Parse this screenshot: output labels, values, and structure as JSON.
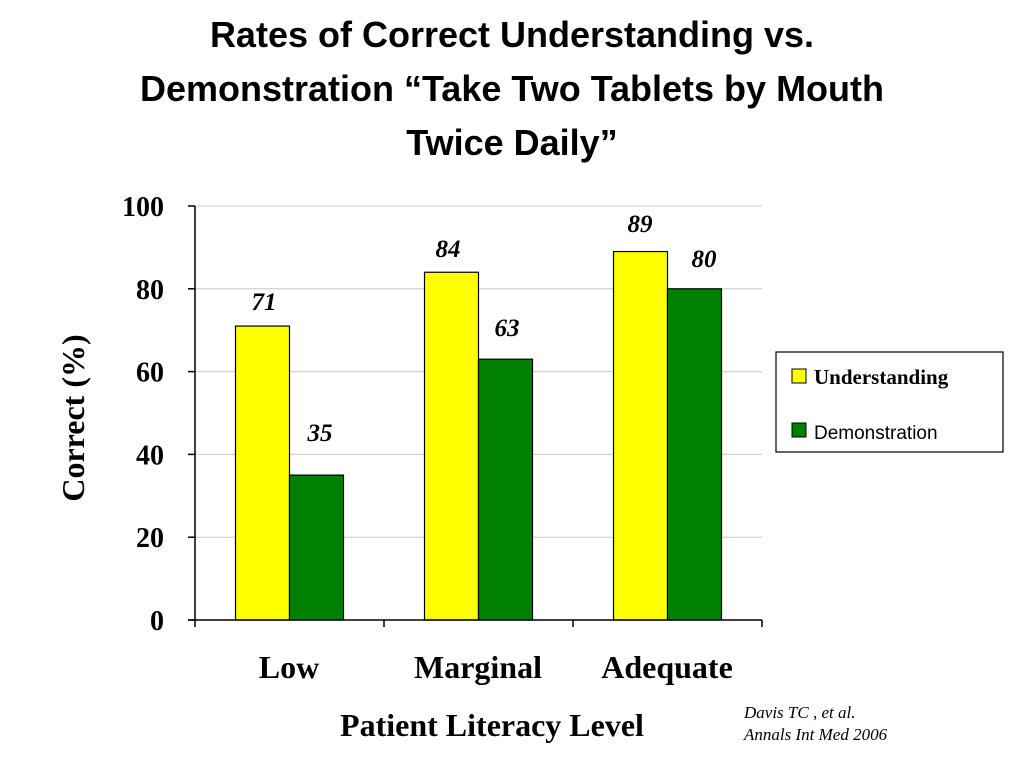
{
  "title_lines": [
    "Rates of Correct Understanding vs.",
    "Demonstration “Take Two Tablets by Mouth",
    "Twice Daily”"
  ],
  "citation": {
    "line1": "Davis TC , et al.",
    "line2": "Annals Int Med 2006"
  },
  "chart_data": {
    "type": "bar",
    "title": "Rates of Correct Understanding vs. Demonstration “Take Two Tablets by Mouth Twice Daily”",
    "xlabel": "Patient Literacy Level",
    "ylabel": "Correct (%)",
    "ylim": [
      0,
      100
    ],
    "yticks": [
      "0",
      "20",
      "40",
      "60",
      "80",
      "100"
    ],
    "categories": [
      "Low",
      "Marginal",
      "Adequate"
    ],
    "series": [
      {
        "name": "Understanding",
        "values": [
          71,
          84,
          89
        ],
        "labels": [
          "71",
          "84",
          "89"
        ],
        "color": "#ffff00"
      },
      {
        "name": "Demonstration",
        "values": [
          35,
          63,
          80
        ],
        "labels": [
          "35",
          "63",
          "80"
        ],
        "color": "#008000"
      }
    ],
    "grid": true,
    "legend_position": "right"
  }
}
